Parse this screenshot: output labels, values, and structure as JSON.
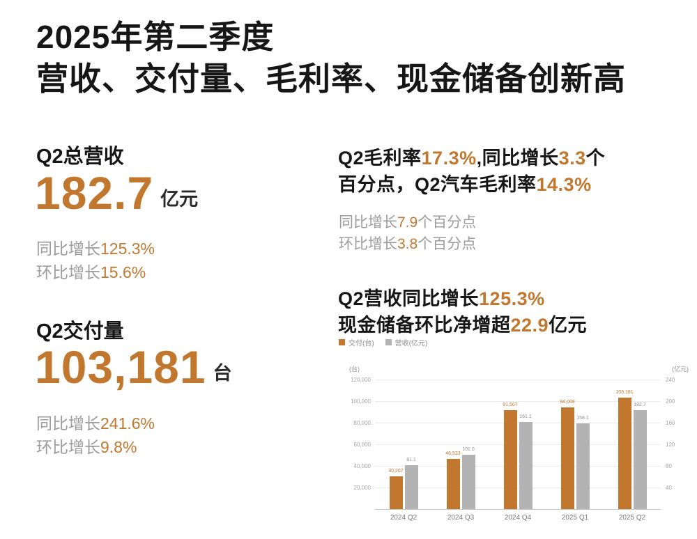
{
  "colors": {
    "accent": "#C2772E",
    "text_dark": "#161616",
    "text_gray": "#9C9C9C",
    "bar_orange": "#C2772E",
    "bar_gray": "#B3B3B3",
    "grid": "#ECECEC",
    "axis": "#C4C4C4"
  },
  "title": {
    "line1": "2025年第二季度",
    "line2": "营收、交付量、毛利率、现金储备创新高"
  },
  "revenue_stat": {
    "heading": "Q2总营收",
    "value": "182.7",
    "unit": "亿元",
    "yoy": [
      {
        "t": "同比增长",
        "a": false
      },
      {
        "t": "125.3%",
        "a": true
      }
    ],
    "qoq": [
      {
        "t": "环比增长",
        "a": false
      },
      {
        "t": "15.6%",
        "a": true
      }
    ]
  },
  "delivery_stat": {
    "heading": "Q2交付量",
    "value": "103,181",
    "unit": "台",
    "yoy": [
      {
        "t": "同比增长",
        "a": false
      },
      {
        "t": "241.6%",
        "a": true
      }
    ],
    "qoq": [
      {
        "t": "环比增长",
        "a": false
      },
      {
        "t": "9.8%",
        "a": true
      }
    ]
  },
  "margin_block": {
    "line1": [
      {
        "t": "Q2毛利率",
        "a": false
      },
      {
        "t": "17.3%",
        "a": true
      },
      {
        "t": ",同比增长",
        "a": false
      },
      {
        "t": "3.3",
        "a": true
      },
      {
        "t": "个",
        "a": false
      }
    ],
    "line2": [
      {
        "t": "百分点，Q2汽车毛利率",
        "a": false
      },
      {
        "t": "14.3%",
        "a": true
      }
    ],
    "sub1": [
      {
        "t": "同比增长",
        "a": false
      },
      {
        "t": "7.9",
        "a": true
      },
      {
        "t": "个百分点",
        "a": false
      }
    ],
    "sub2": [
      {
        "t": "环比增长",
        "a": false
      },
      {
        "t": "3.8",
        "a": true
      },
      {
        "t": "个百分点",
        "a": false
      }
    ]
  },
  "growth_block": {
    "line1": [
      {
        "t": "Q2营收同比增长",
        "a": false
      },
      {
        "t": "125.3%",
        "a": true
      }
    ],
    "line2": [
      {
        "t": "现金储备环比净增超",
        "a": false
      },
      {
        "t": "22.9",
        "a": true
      },
      {
        "t": "亿元",
        "a": false
      }
    ]
  },
  "chart_data": {
    "type": "bar",
    "title": "Q2营收同比增长125.3%，现金储备环比净增超22.9亿元",
    "categories": [
      "2024 Q2",
      "2024 Q3",
      "2024 Q4",
      "2025 Q1",
      "2025 Q2"
    ],
    "series": [
      {
        "name": "交付(台)",
        "axis": "left",
        "color": "#C2772E",
        "values": [
          30207,
          46533,
          91507,
          94008,
          103181
        ],
        "labels": [
          "30,207",
          "46,533",
          "91,507",
          "94,008",
          "103,181"
        ]
      },
      {
        "name": "营收(亿元)",
        "axis": "right",
        "color": "#B3B3B3",
        "values": [
          81.1,
          101.0,
          161.1,
          158.1,
          182.7
        ],
        "labels": [
          "81.1",
          "101.0",
          "161.1",
          "158.1",
          "182.7"
        ]
      }
    ],
    "left_axis": {
      "unit": "(台)",
      "max": 120000,
      "ticks": [
        "20,000",
        "40,000",
        "60,000",
        "80,000",
        "100,000",
        "120,000"
      ]
    },
    "right_axis": {
      "unit": "(亿元)",
      "max": 240,
      "ticks": [
        "40",
        "80",
        "120",
        "160",
        "200",
        "240"
      ]
    },
    "grid": true,
    "legend_position": "top-left",
    "legend": [
      {
        "label": "交付(台)",
        "color": "#C2772E"
      },
      {
        "label": "营收(亿元)",
        "color": "#B3B3B3"
      }
    ]
  }
}
